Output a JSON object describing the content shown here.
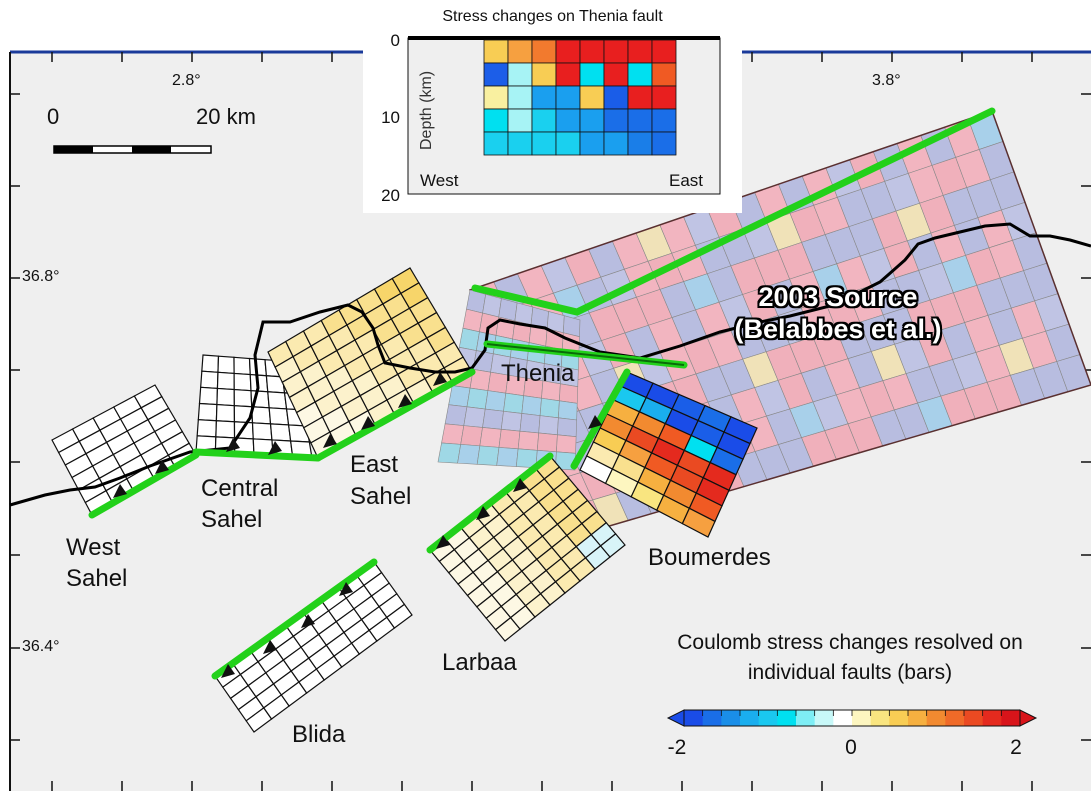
{
  "map": {
    "longitude_labels": [
      "2.8°",
      "3.8°"
    ],
    "latitude_labels": [
      "36.8°",
      "36.4°"
    ],
    "scale_bar": {
      "start": "0",
      "end": "20 km"
    }
  },
  "faults": [
    {
      "name": "West Sahel",
      "label": [
        "West",
        "Sahel"
      ]
    },
    {
      "name": "Central Sahel",
      "label": [
        "Central",
        "Sahel"
      ]
    },
    {
      "name": "East Sahel",
      "label": [
        "East",
        "Sahel"
      ]
    },
    {
      "name": "Thenia",
      "label": [
        "Thenia"
      ]
    },
    {
      "name": "Boumerdes",
      "label": [
        "Boumerdes"
      ]
    },
    {
      "name": "Larbaa",
      "label": [
        "Larbaa"
      ]
    },
    {
      "name": "Blida",
      "label": [
        "Blida"
      ]
    }
  ],
  "source": {
    "label_line1": "2003 Source",
    "label_line2": "(Belabbes et al.)"
  },
  "inset": {
    "title": "Stress changes on Thenia fault",
    "y_axis_label": "Depth (km)",
    "y_ticks": [
      "0",
      "10",
      "20"
    ],
    "west_label": "West",
    "east_label": "East",
    "grid_colors": [
      [
        "#f8cd54",
        "#f6a040",
        "#f27a2e",
        "#e81f1f",
        "#e81f1f",
        "#e81f1f",
        "#e81f1f",
        "#e81f1f"
      ],
      [
        "#1c5ee8",
        "#a7f3f5",
        "#f8cd54",
        "#e81f1f",
        "#00e0f0",
        "#e81f1f",
        "#00e0f0",
        "#f05a23"
      ],
      [
        "#f9f0a0",
        "#a7f3f5",
        "#1a9fef",
        "#1a9fef",
        "#f8cd54",
        "#1a5de8",
        "#e81f1f",
        "#e81f1f"
      ],
      [
        "#00e0f0",
        "#a7f3f5",
        "#1ad0ef",
        "#1a9fef",
        "#1a9fef",
        "#1a6ee8",
        "#1a6ee8",
        "#1a6ee8"
      ],
      [
        "#1ad0ef",
        "#1ad0ef",
        "#1ad0ef",
        "#1ad0ef",
        "#1a9fef",
        "#1a9fef",
        "#1a7ee8",
        "#1a6ee8"
      ]
    ]
  },
  "legend": {
    "title_line1": "Coulomb stress changes resolved on",
    "title_line2": "individual faults (bars)",
    "min_label": "-2",
    "mid_label": "0",
    "max_label": "2",
    "colors": [
      "#1a4ce8",
      "#1a6ee8",
      "#1a8ee8",
      "#1aaeee",
      "#1ac8ef",
      "#00e0f0",
      "#7eeef5",
      "#c8f8f8",
      "#ffffff",
      "#fdf6c0",
      "#f9e580",
      "#f8cd54",
      "#f6b040",
      "#f28a30",
      "#ef6a28",
      "#ea4a22",
      "#e42a1e",
      "#d8141a"
    ]
  }
}
